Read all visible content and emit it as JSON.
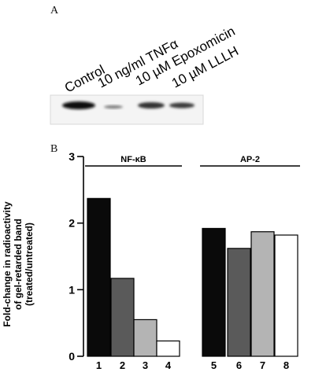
{
  "panel_a": {
    "letter": "A",
    "lanes": [
      "Control",
      "10 ng/ml TNFα",
      "10 µM Epoxomicin",
      "10 µM LLLH"
    ]
  },
  "panel_b": {
    "letter": "B"
  },
  "chart_data": {
    "type": "bar",
    "categories": [
      "1",
      "2",
      "3",
      "4",
      "5",
      "6",
      "7",
      "8"
    ],
    "values": [
      2.37,
      1.17,
      0.55,
      0.23,
      1.92,
      1.62,
      1.87,
      1.82
    ],
    "bar_colors": [
      "#0a0a0a",
      "#5a5a5a",
      "#b4b4b4",
      "#ffffff",
      "#0a0a0a",
      "#5a5a5a",
      "#b4b4b4",
      "#ffffff"
    ],
    "groups": [
      {
        "label": "NF-κB",
        "categories": [
          "1",
          "2",
          "3",
          "4"
        ]
      },
      {
        "label": "AP-2",
        "categories": [
          "5",
          "6",
          "7",
          "8"
        ]
      }
    ],
    "ylabel_lines": [
      "Fold-change in radioactivity",
      "of gel-retarded band",
      "(treated/untreated)"
    ],
    "yticks": [
      "0",
      "1",
      "2",
      "3"
    ],
    "ylim": [
      0,
      3
    ]
  }
}
